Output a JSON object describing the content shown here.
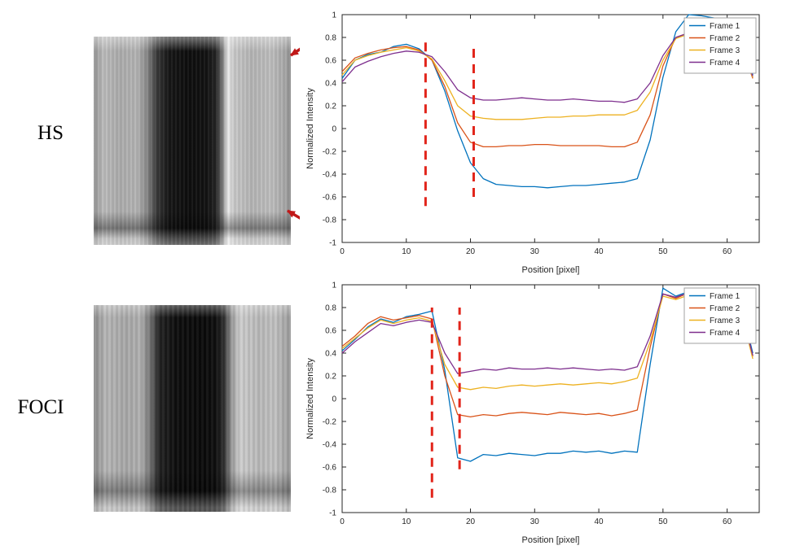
{
  "figure": {
    "row_labels": {
      "top": "HS",
      "bottom": "FOCI"
    }
  },
  "colors": {
    "frame1": "#0072BD",
    "frame2": "#D95319",
    "frame3": "#EDB120",
    "frame4": "#7E2F8E",
    "dashed_line": "#E2251B",
    "arrow": "#C01818",
    "axis": "#262626"
  },
  "chart_data": [
    {
      "type": "line",
      "panel": "HS",
      "title": "",
      "xlabel": "Position [pixel]",
      "ylabel": "Normalized Intensity",
      "xlim": [
        0,
        65
      ],
      "ylim": [
        -1,
        1
      ],
      "xticks": [
        0,
        10,
        20,
        30,
        40,
        50,
        60
      ],
      "yticks": [
        -1,
        -0.8,
        -0.6,
        -0.4,
        -0.2,
        0,
        0.2,
        0.4,
        0.6,
        0.8,
        1
      ],
      "grid": false,
      "legend_position": "top-right",
      "x": [
        0,
        2,
        4,
        6,
        8,
        10,
        12,
        14,
        16,
        18,
        20,
        22,
        24,
        26,
        28,
        30,
        32,
        34,
        36,
        38,
        40,
        42,
        44,
        46,
        48,
        50,
        52,
        54,
        56,
        58,
        60,
        62,
        64
      ],
      "series": [
        {
          "name": "Frame 1",
          "color": "#0072BD",
          "values": [
            0.44,
            0.6,
            0.65,
            0.67,
            0.72,
            0.74,
            0.7,
            0.6,
            0.33,
            -0.02,
            -0.3,
            -0.44,
            -0.49,
            -0.5,
            -0.51,
            -0.51,
            -0.52,
            -0.51,
            -0.5,
            -0.5,
            -0.49,
            -0.48,
            -0.47,
            -0.44,
            -0.1,
            0.45,
            0.85,
            1.0,
            0.99,
            0.97,
            0.95,
            0.93,
            0.47
          ]
        },
        {
          "name": "Frame 2",
          "color": "#D95319",
          "values": [
            0.5,
            0.62,
            0.66,
            0.69,
            0.71,
            0.72,
            0.69,
            0.6,
            0.37,
            0.05,
            -0.12,
            -0.16,
            -0.16,
            -0.15,
            -0.15,
            -0.14,
            -0.14,
            -0.15,
            -0.15,
            -0.15,
            -0.15,
            -0.16,
            -0.16,
            -0.12,
            0.12,
            0.55,
            0.8,
            0.84,
            0.83,
            0.81,
            0.79,
            0.76,
            0.44
          ]
        },
        {
          "name": "Frame 3",
          "color": "#EDB120",
          "values": [
            0.47,
            0.6,
            0.64,
            0.67,
            0.69,
            0.71,
            0.68,
            0.61,
            0.42,
            0.2,
            0.11,
            0.09,
            0.08,
            0.08,
            0.08,
            0.09,
            0.1,
            0.1,
            0.11,
            0.11,
            0.12,
            0.12,
            0.12,
            0.16,
            0.32,
            0.6,
            0.79,
            0.83,
            0.82,
            0.8,
            0.78,
            0.75,
            0.45
          ]
        },
        {
          "name": "Frame 4",
          "color": "#7E2F8E",
          "values": [
            0.41,
            0.54,
            0.59,
            0.63,
            0.66,
            0.68,
            0.67,
            0.63,
            0.5,
            0.34,
            0.27,
            0.25,
            0.25,
            0.26,
            0.27,
            0.26,
            0.25,
            0.25,
            0.26,
            0.25,
            0.24,
            0.24,
            0.23,
            0.26,
            0.4,
            0.64,
            0.8,
            0.84,
            0.83,
            0.81,
            0.79,
            0.76,
            0.46
          ]
        }
      ],
      "dashed_vlines": [
        {
          "x": 13,
          "y1": -0.68,
          "y2": 0.78
        },
        {
          "x": 20.5,
          "y1": -0.6,
          "y2": 0.75
        }
      ]
    },
    {
      "type": "line",
      "panel": "FOCI",
      "title": "",
      "xlabel": "Position [pixel]",
      "ylabel": "Normalized Intensity",
      "xlim": [
        0,
        65
      ],
      "ylim": [
        -1,
        1
      ],
      "xticks": [
        0,
        10,
        20,
        30,
        40,
        50,
        60
      ],
      "yticks": [
        -1,
        -0.8,
        -0.6,
        -0.4,
        -0.2,
        0,
        0.2,
        0.4,
        0.6,
        0.8,
        1
      ],
      "grid": false,
      "legend_position": "top-right",
      "x": [
        0,
        2,
        4,
        6,
        8,
        10,
        12,
        14,
        16,
        18,
        20,
        22,
        24,
        26,
        28,
        30,
        32,
        34,
        36,
        38,
        40,
        42,
        44,
        46,
        48,
        50,
        52,
        54,
        56,
        58,
        60,
        62,
        64
      ],
      "series": [
        {
          "name": "Frame 1",
          "color": "#0072BD",
          "values": [
            0.42,
            0.52,
            0.63,
            0.7,
            0.67,
            0.72,
            0.74,
            0.77,
            0.25,
            -0.52,
            -0.55,
            -0.49,
            -0.5,
            -0.48,
            -0.49,
            -0.5,
            -0.48,
            -0.48,
            -0.46,
            -0.47,
            -0.46,
            -0.48,
            -0.46,
            -0.47,
            0.3,
            0.97,
            0.9,
            0.94,
            0.91,
            0.93,
            0.9,
            0.86,
            0.4
          ]
        },
        {
          "name": "Frame 2",
          "color": "#D95319",
          "values": [
            0.46,
            0.55,
            0.66,
            0.72,
            0.69,
            0.71,
            0.73,
            0.7,
            0.2,
            -0.14,
            -0.16,
            -0.14,
            -0.15,
            -0.13,
            -0.12,
            -0.13,
            -0.14,
            -0.12,
            -0.13,
            -0.14,
            -0.13,
            -0.15,
            -0.13,
            -0.1,
            0.45,
            0.92,
            0.88,
            0.93,
            0.9,
            0.92,
            0.88,
            0.84,
            0.37
          ]
        },
        {
          "name": "Frame 3",
          "color": "#EDB120",
          "values": [
            0.44,
            0.53,
            0.62,
            0.69,
            0.66,
            0.69,
            0.71,
            0.68,
            0.3,
            0.1,
            0.08,
            0.1,
            0.09,
            0.11,
            0.12,
            0.11,
            0.12,
            0.13,
            0.12,
            0.13,
            0.14,
            0.13,
            0.15,
            0.18,
            0.5,
            0.9,
            0.87,
            0.91,
            0.89,
            0.9,
            0.86,
            0.8,
            0.35
          ]
        },
        {
          "name": "Frame 4",
          "color": "#7E2F8E",
          "values": [
            0.4,
            0.5,
            0.58,
            0.66,
            0.64,
            0.67,
            0.69,
            0.67,
            0.4,
            0.22,
            0.24,
            0.26,
            0.25,
            0.27,
            0.26,
            0.26,
            0.27,
            0.26,
            0.27,
            0.26,
            0.25,
            0.26,
            0.25,
            0.28,
            0.55,
            0.92,
            0.89,
            0.93,
            0.9,
            0.91,
            0.87,
            0.82,
            0.38
          ]
        }
      ],
      "dashed_vlines": [
        {
          "x": 14,
          "y1": -0.87,
          "y2": 0.8
        },
        {
          "x": 18.3,
          "y1": -0.62,
          "y2": 0.8
        }
      ]
    }
  ]
}
